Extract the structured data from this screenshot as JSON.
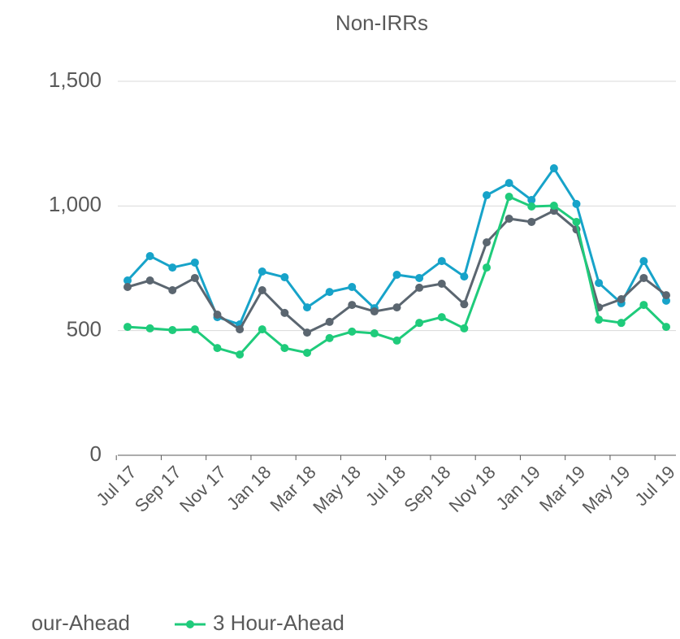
{
  "chart_data": {
    "type": "line",
    "title": "Non-IRRs",
    "categories": [
      "Jul 17",
      null,
      "Sep 17",
      null,
      "Nov 17",
      null,
      "Jan 18",
      null,
      "Mar 18",
      null,
      "May 18",
      null,
      "Jul 18",
      null,
      "Sep 18",
      null,
      "Nov 18",
      null,
      "Jan 19",
      null,
      "Mar 19",
      null,
      "May 19",
      null,
      "Jul 19"
    ],
    "series": [
      {
        "color": "#17a3c9",
        "values": [
          701,
          799,
          753,
          773,
          554,
          525,
          737,
          714,
          593,
          655,
          675,
          590,
          724,
          711,
          779,
          717,
          1043,
          1092,
          1024,
          1151,
          1008,
          691,
          610,
          779,
          620
        ]
      },
      {
        "name": "our-Ahead",
        "color": "#5b6670",
        "values": [
          675,
          701,
          662,
          711,
          564,
          505,
          662,
          571,
          492,
          535,
          603,
          577,
          593,
          672,
          688,
          606,
          854,
          949,
          936,
          981,
          906,
          593,
          626,
          711,
          642
        ]
      },
      {
        "name": "3 Hour-Ahead",
        "color": "#1fcb7b",
        "values": [
          515,
          509,
          502,
          505,
          430,
          404,
          505,
          430,
          411,
          470,
          496,
          489,
          460,
          531,
          554,
          509,
          753,
          1037,
          998,
          1001,
          936,
          544,
          531,
          603,
          515
        ]
      }
    ],
    "ylim": [
      0,
      1500
    ],
    "yticks": [
      0,
      {
        "value": 500,
        "label": "500"
      },
      {
        "value": 1000,
        "label": "1,000"
      },
      {
        "value": 1500,
        "label": "1,500"
      }
    ],
    "grid": true
  }
}
